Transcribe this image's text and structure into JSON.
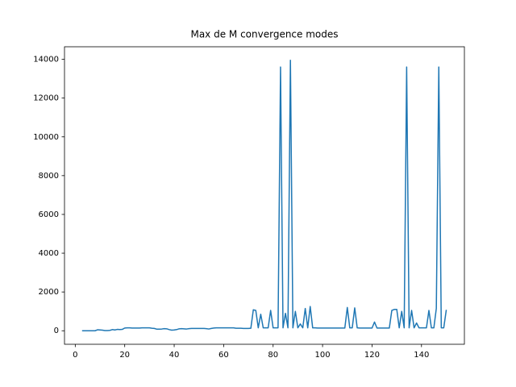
{
  "chart_data": {
    "type": "line",
    "title": "Max de M convergence modes",
    "x": [
      3,
      4,
      5,
      6,
      7,
      8,
      9,
      10,
      11,
      12,
      13,
      14,
      15,
      16,
      17,
      18,
      19,
      20,
      21,
      22,
      23,
      24,
      25,
      26,
      27,
      28,
      29,
      30,
      31,
      32,
      33,
      34,
      35,
      36,
      37,
      38,
      39,
      40,
      41,
      42,
      43,
      44,
      45,
      46,
      47,
      48,
      49,
      50,
      51,
      52,
      53,
      54,
      55,
      56,
      57,
      58,
      59,
      60,
      61,
      62,
      63,
      64,
      65,
      66,
      67,
      68,
      69,
      70,
      71,
      72,
      73,
      74,
      75,
      76,
      77,
      78,
      79,
      80,
      81,
      82,
      83,
      84,
      85,
      86,
      87,
      88,
      89,
      90,
      91,
      92,
      93,
      94,
      95,
      96,
      97,
      98,
      99,
      100,
      101,
      102,
      103,
      104,
      105,
      106,
      107,
      108,
      109,
      110,
      111,
      112,
      113,
      114,
      115,
      116,
      117,
      118,
      119,
      120,
      121,
      122,
      123,
      124,
      125,
      126,
      127,
      128,
      129,
      130,
      131,
      132,
      133,
      134,
      135,
      136,
      137,
      138,
      139,
      140,
      141,
      142,
      143,
      144,
      145,
      146,
      147,
      148,
      149,
      150
    ],
    "series": [
      {
        "color": "#1f77b4",
        "values": [
          0,
          0,
          0,
          0,
          0,
          0,
          50,
          40,
          30,
          10,
          10,
          20,
          60,
          40,
          70,
          60,
          70,
          140,
          150,
          150,
          140,
          140,
          140,
          140,
          150,
          150,
          150,
          150,
          130,
          120,
          80,
          80,
          90,
          110,
          100,
          60,
          30,
          40,
          60,
          100,
          110,
          100,
          90,
          110,
          120,
          120,
          120,
          120,
          120,
          120,
          110,
          90,
          120,
          140,
          150,
          150,
          150,
          150,
          150,
          150,
          150,
          150,
          130,
          130,
          130,
          120,
          120,
          120,
          130,
          1080,
          1050,
          150,
          850,
          150,
          150,
          150,
          1050,
          150,
          150,
          150,
          13600,
          150,
          900,
          150,
          13950,
          150,
          1000,
          150,
          350,
          150,
          1150,
          150,
          1250,
          150,
          150,
          140,
          140,
          140,
          140,
          140,
          140,
          140,
          140,
          140,
          140,
          140,
          140,
          1200,
          150,
          150,
          1180,
          150,
          140,
          140,
          140,
          140,
          140,
          140,
          450,
          140,
          140,
          140,
          140,
          140,
          140,
          1050,
          1100,
          1100,
          150,
          1000,
          150,
          13600,
          150,
          1050,
          150,
          400,
          150,
          150,
          150,
          150,
          1050,
          150,
          150,
          1150,
          13600,
          150,
          150,
          1050
        ]
      }
    ],
    "xlim": [
      -4.35,
      157.35
    ],
    "xticks": [
      0,
      20,
      40,
      60,
      80,
      100,
      120,
      140
    ],
    "ylim": [
      -697,
      14647
    ],
    "yticks": [
      0,
      2000,
      4000,
      6000,
      8000,
      10000,
      12000,
      14000
    ]
  }
}
